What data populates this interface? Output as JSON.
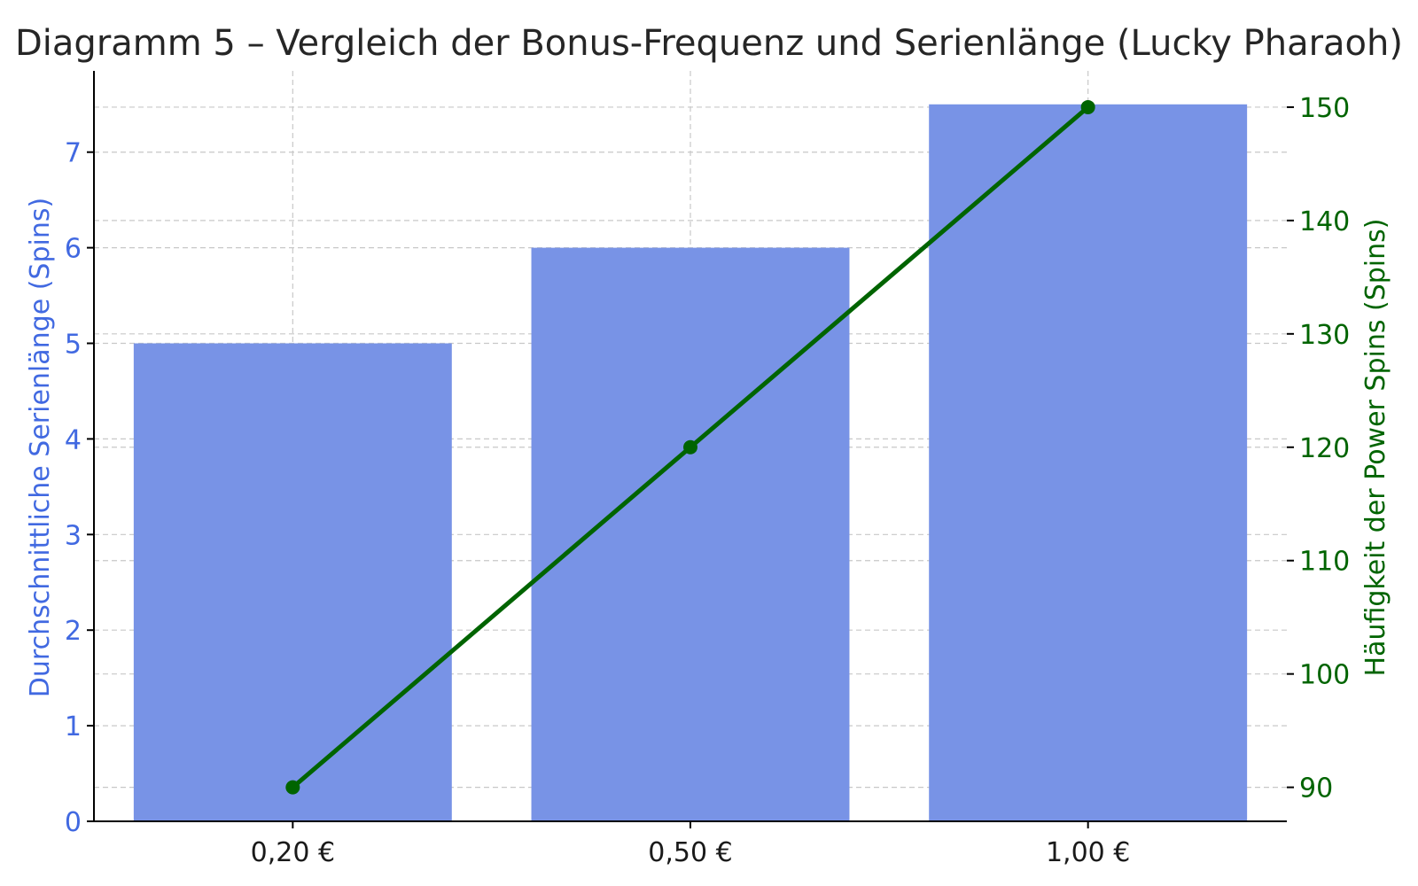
{
  "chart_data": {
    "type": "bar",
    "title": "Diagramm 5 – Vergleich der Bonus-Frequenz und Serienlänge (Lucky Pharaoh)",
    "categories": [
      "0,20 €",
      "0,50 €",
      "1,00 €"
    ],
    "ylabel_left": "Durchschnittliche Serienlänge (Spins)",
    "ylabel_right": "Häufigkeit der Power Spins (Spins)",
    "ylim_left": [
      0,
      7.85
    ],
    "ylim_right": [
      87,
      153.2
    ],
    "yticks_left": [
      "0",
      "1",
      "2",
      "3",
      "4",
      "5",
      "6",
      "7"
    ],
    "yticks_right": [
      "90",
      "100",
      "110",
      "120",
      "130",
      "140",
      "150"
    ],
    "grid": true,
    "series": [
      {
        "type": "bar",
        "axis": "left",
        "values": [
          5,
          6,
          7.5
        ],
        "color": "#7893e6"
      },
      {
        "type": "line",
        "axis": "right",
        "values": [
          90,
          120,
          150
        ],
        "color": "#006400"
      }
    ]
  }
}
